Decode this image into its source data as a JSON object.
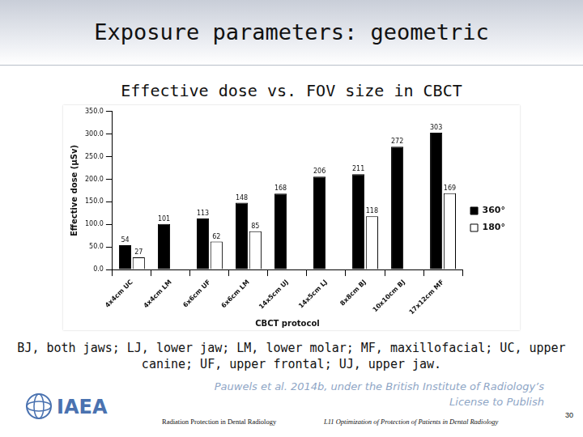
{
  "header": {
    "title": "Exposure parameters: geometric"
  },
  "chart_data": {
    "type": "bar",
    "title": "Effective dose vs. FOV size in CBCT",
    "x_label": "CBCT protocol",
    "y_label": "Effective dose (µSv)",
    "categories": [
      "4x4cm UC",
      "4x4cm LM",
      "6x6cm UF",
      "6x6cm LM",
      "14x5cm UJ",
      "14x5cm LJ",
      "8x8cm BJ",
      "10x10cm BJ",
      "17x12cm MF"
    ],
    "series": [
      {
        "name": "360°",
        "color": "#000000",
        "values": [
          54,
          101,
          113,
          148,
          168,
          206,
          211,
          272,
          303
        ]
      },
      {
        "name": "180°",
        "color": "#ffffff",
        "values": [
          27,
          null,
          62,
          85,
          null,
          null,
          118,
          null,
          169
        ]
      }
    ],
    "ylim": [
      0,
      350
    ],
    "yticks": [
      {
        "value": 0,
        "label": "0.0"
      },
      {
        "value": 50,
        "label": "50.0"
      },
      {
        "value": 100,
        "label": "100.0"
      },
      {
        "value": 150,
        "label": "150.0"
      },
      {
        "value": 200,
        "label": "200.0"
      },
      {
        "value": 250,
        "label": "250.0"
      },
      {
        "value": 300,
        "label": "300.0"
      },
      {
        "value": 350,
        "label": "350.0"
      }
    ],
    "grid": false,
    "legend": "right",
    "data_labels": true
  },
  "caption": "BJ, both jaws; LJ, lower jaw; LM, lower molar; MF, maxillofacial; UC, upper canine; UF, upper frontal; UJ, upper jaw.",
  "citation": "Pauwels et al. 2014b, under the British Institute of Radiology’s License to Publish",
  "footer": {
    "logo": "IAEA",
    "left": "Radiation Protection in Dental Radiology",
    "center": "L11 Optimization of Protection of Patients in Dental Radiology",
    "page": 30
  }
}
